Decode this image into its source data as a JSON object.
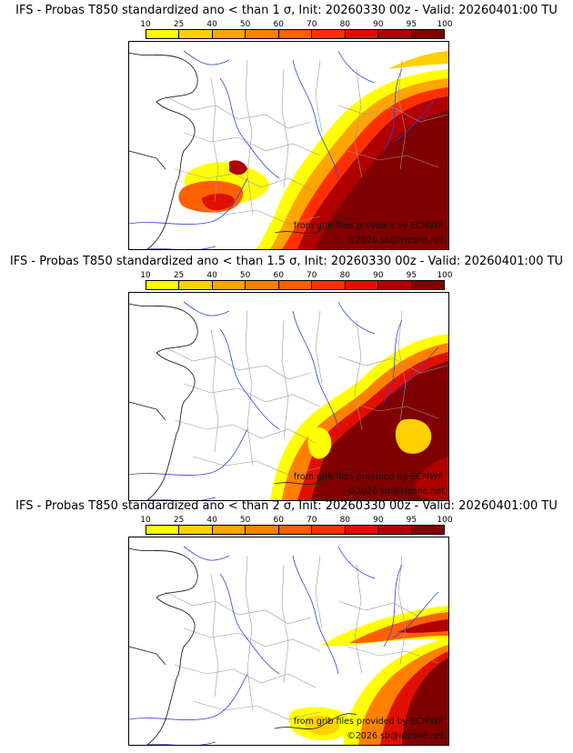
{
  "colorbar": {
    "labels": [
      "10",
      "25",
      "40",
      "50",
      "60",
      "70",
      "80",
      "90",
      "95",
      "100"
    ],
    "colors": [
      "#ffff00",
      "#ffd000",
      "#ffa500",
      "#ff8000",
      "#ff6000",
      "#ff3000",
      "#e01000",
      "#b00000",
      "#800000"
    ]
  },
  "panels": [
    {
      "title": "IFS - Probas T850  standardized ano < than 1 σ, Init: 20260330 00z - Valid: 20260401:00 TU",
      "credit_ecmwf": "from grib files provided by ECMWF",
      "credit_site": "©2026 sb@irizone.net"
    },
    {
      "title": "IFS - Probas T850  standardized ano < than 1.5 σ, Init: 20260330 00z - Valid: 20260401:00 TU",
      "credit_ecmwf": "from grib files provided by ECMWF",
      "credit_site": "©2026 sb@irizone.net"
    },
    {
      "title": "IFS - Probas T850  standardized ano < than 2 σ, Init: 20260330 00z - Valid: 20260401:00 TU",
      "credit_ecmwf": "from grib files provided by ECMWF",
      "credit_site": "©2026 sb@irizone.net"
    }
  ]
}
